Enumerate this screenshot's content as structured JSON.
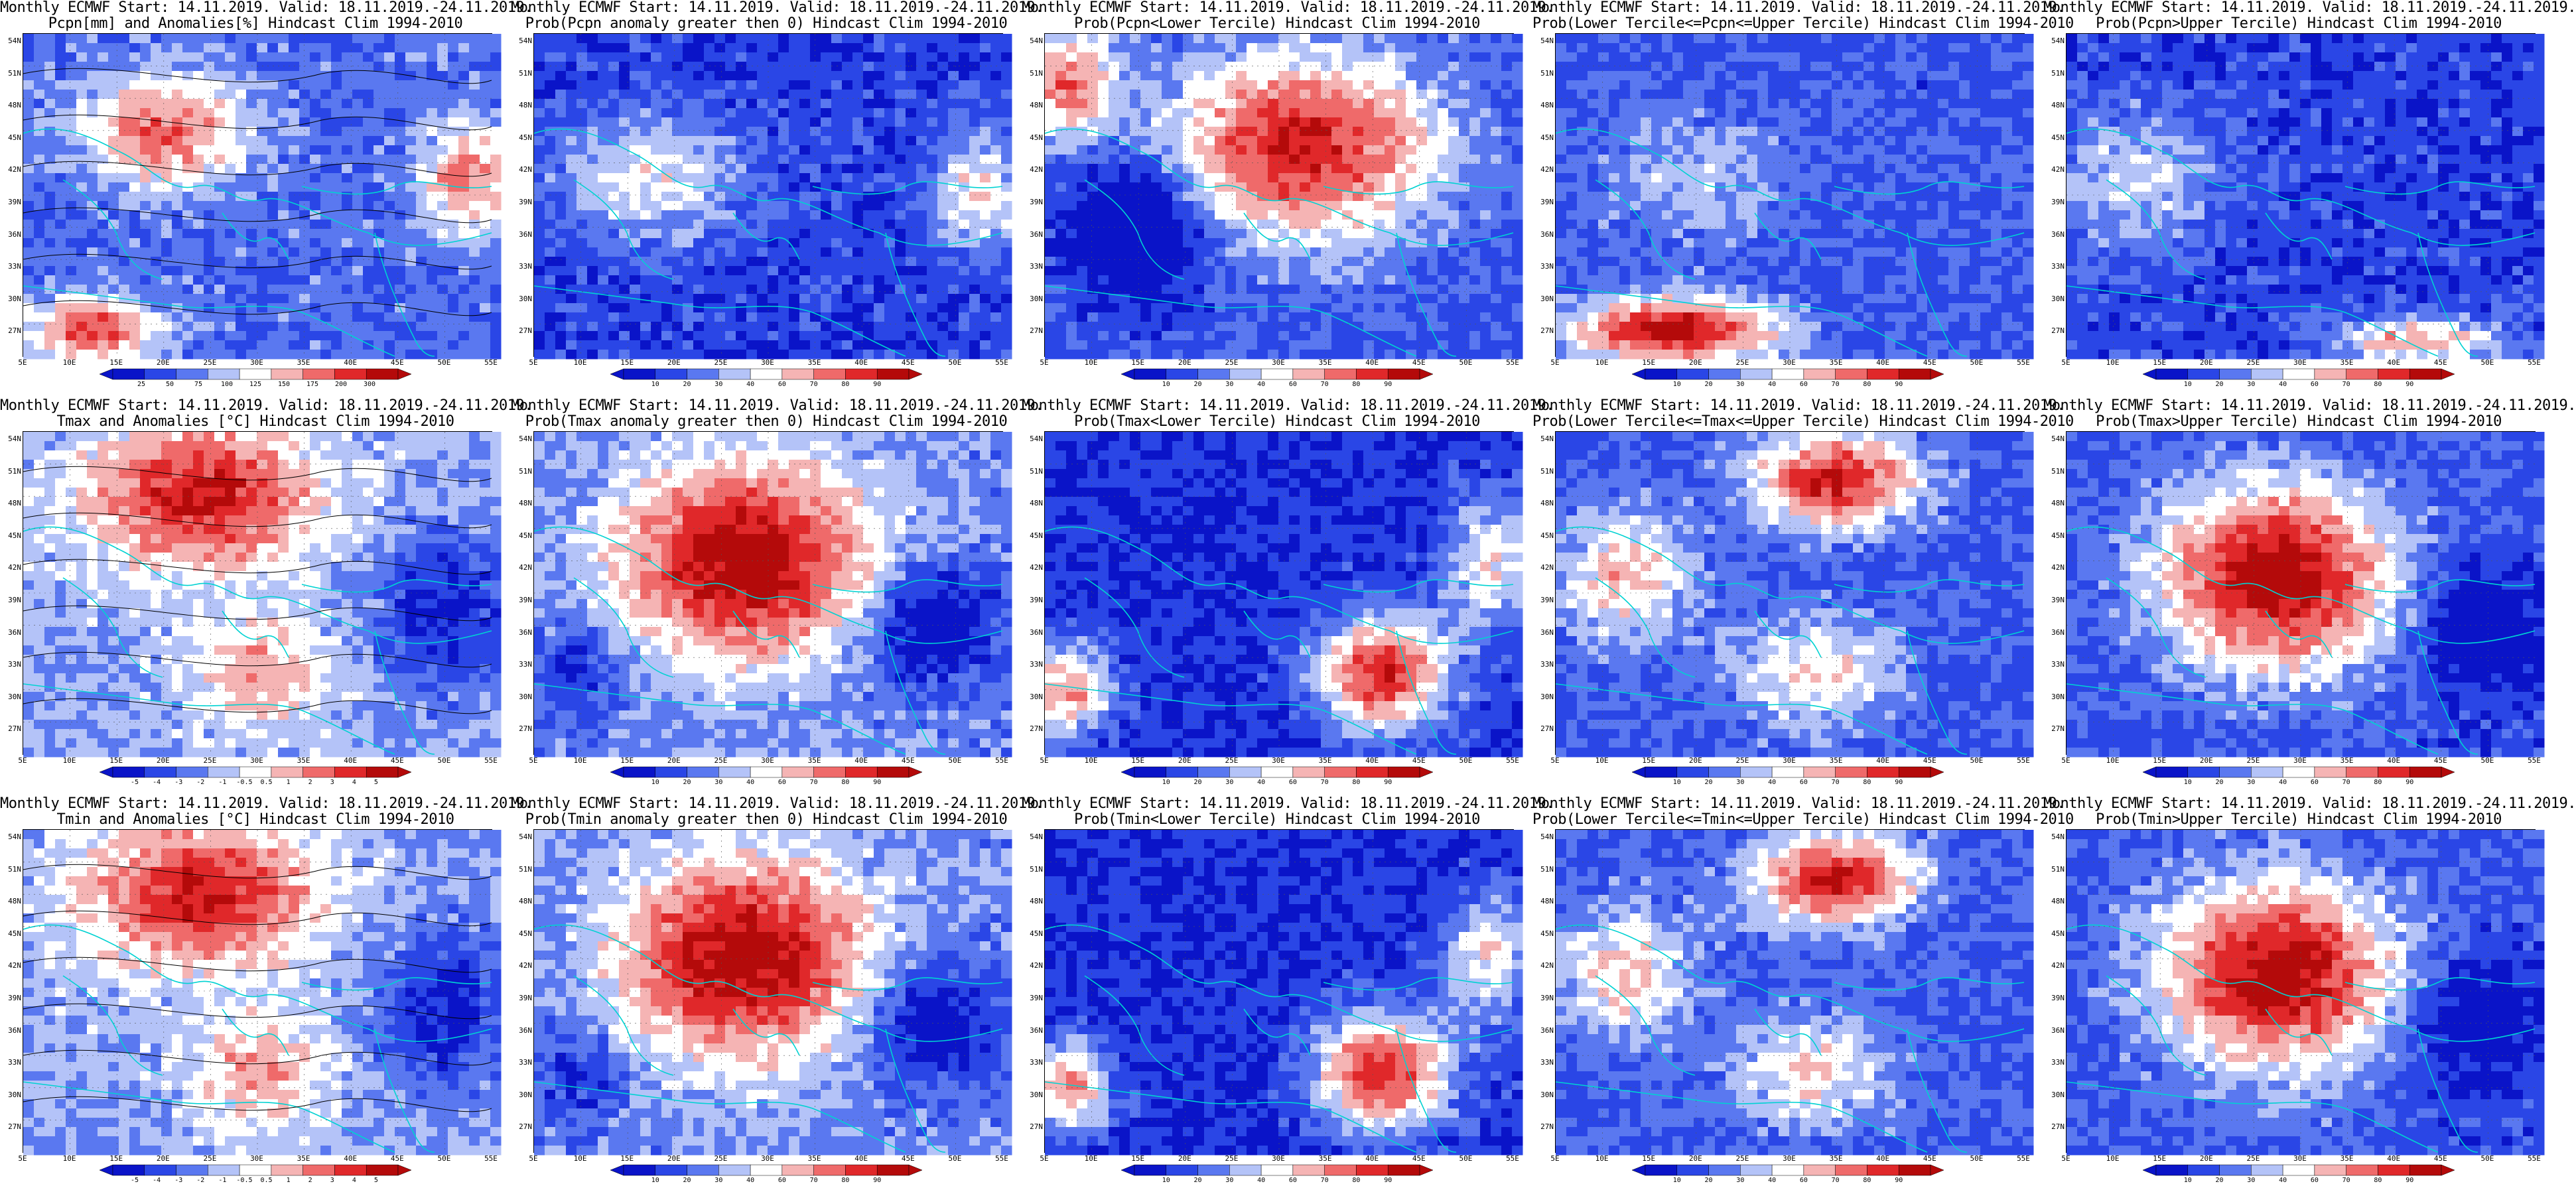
{
  "rows": [
    {
      "variable": "precipitation",
      "panels": [
        {
          "title1": "Monthly ECMWF Start: 14.11.2019. Valid: 18.11.2019.-24.11.2019.",
          "title2": "Pcpn[mm] and Anomalies[%] Hindcast Clim 1994-2010",
          "palette": "anom",
          "pattern": "pcpn_anom",
          "colorbar": [
            "25",
            "50",
            "75",
            "100",
            "125",
            "150",
            "175",
            "200",
            "300"
          ]
        },
        {
          "title1": "Monthly ECMWF Start: 14.11.2019. Valid: 18.11.2019.-24.11.2019.",
          "title2": "Prob(Pcpn anomaly greater then 0) Hindcast Clim 1994-2010",
          "palette": "prob",
          "pattern": "pcpn_pos",
          "colorbar": [
            "10",
            "20",
            "30",
            "40",
            "60",
            "70",
            "80",
            "90"
          ]
        },
        {
          "title1": "Monthly ECMWF Start: 14.11.2019. Valid: 18.11.2019.-24.11.2019.",
          "title2": "Prob(Pcpn<Lower Tercile) Hindcast Clim 1994-2010",
          "palette": "prob",
          "pattern": "pcpn_low",
          "colorbar": [
            "10",
            "20",
            "30",
            "40",
            "60",
            "70",
            "80",
            "90"
          ]
        },
        {
          "title1": "Monthly ECMWF Start: 14.11.2019. Valid: 18.11.2019.-24.11.2019.",
          "title2": "Prob(Lower Tercile<=Pcpn<=Upper Tercile) Hindcast Clim 1994-2010",
          "palette": "prob",
          "pattern": "pcpn_mid",
          "colorbar": [
            "10",
            "20",
            "30",
            "40",
            "60",
            "70",
            "80",
            "90"
          ]
        },
        {
          "title1": "Monthly ECMWF Start: 14.11.2019. Valid: 18.11.2019.-24.11.2019.",
          "title2": "Prob(Pcpn>Upper Tercile) Hindcast Clim 1994-2010",
          "palette": "prob",
          "pattern": "pcpn_up",
          "colorbar": [
            "10",
            "20",
            "30",
            "40",
            "60",
            "70",
            "80",
            "90"
          ]
        }
      ]
    },
    {
      "variable": "tmax",
      "panels": [
        {
          "title1": "Monthly ECMWF Start: 14.11.2019. Valid: 18.11.2019.-24.11.2019.",
          "title2": "Tmax and Anomalies [°C] Hindcast Clim 1994-2010",
          "palette": "anom",
          "pattern": "t_anom",
          "colorbar": [
            "-5",
            "-4",
            "-3",
            "-2",
            "-1",
            "-0.5",
            "0.5",
            "1",
            "2",
            "3",
            "4",
            "5"
          ]
        },
        {
          "title1": "Monthly ECMWF Start: 14.11.2019. Valid: 18.11.2019.-24.11.2019.",
          "title2": "Prob(Tmax anomaly greater then 0) Hindcast Clim 1994-2010",
          "palette": "prob",
          "pattern": "t_pos",
          "colorbar": [
            "10",
            "20",
            "30",
            "40",
            "60",
            "70",
            "80",
            "90"
          ]
        },
        {
          "title1": "Monthly ECMWF Start: 14.11.2019. Valid: 18.11.2019.-24.11.2019.",
          "title2": "Prob(Tmax<Lower Tercile) Hindcast Clim 1994-2010",
          "palette": "prob",
          "pattern": "t_low",
          "colorbar": [
            "10",
            "20",
            "30",
            "40",
            "60",
            "70",
            "80",
            "90"
          ]
        },
        {
          "title1": "Monthly ECMWF Start: 14.11.2019. Valid: 18.11.2019.-24.11.2019.",
          "title2": "Prob(Lower Tercile<=Tmax<=Upper Tercile) Hindcast Clim 1994-2010",
          "palette": "prob",
          "pattern": "t_mid",
          "colorbar": [
            "10",
            "20",
            "30",
            "40",
            "60",
            "70",
            "80",
            "90"
          ]
        },
        {
          "title1": "Monthly ECMWF Start: 14.11.2019. Valid: 18.11.2019.-24.11.2019.",
          "title2": "Prob(Tmax>Upper Tercile) Hindcast Clim 1994-2010",
          "palette": "prob",
          "pattern": "t_up",
          "colorbar": [
            "10",
            "20",
            "30",
            "40",
            "60",
            "70",
            "80",
            "90"
          ]
        }
      ]
    },
    {
      "variable": "tmin",
      "panels": [
        {
          "title1": "Monthly ECMWF Start: 14.11.2019. Valid: 18.11.2019.-24.11.2019.",
          "title2": "Tmin and Anomalies [°C] Hindcast Clim 1994-2010",
          "palette": "anom",
          "pattern": "t_anom",
          "colorbar": [
            "-5",
            "-4",
            "-3",
            "-2",
            "-1",
            "-0.5",
            "0.5",
            "1",
            "2",
            "3",
            "4",
            "5"
          ]
        },
        {
          "title1": "Monthly ECMWF Start: 14.11.2019. Valid: 18.11.2019.-24.11.2019.",
          "title2": "Prob(Tmin anomaly greater then 0) Hindcast Clim 1994-2010",
          "palette": "prob",
          "pattern": "t_pos",
          "colorbar": [
            "10",
            "20",
            "30",
            "40",
            "60",
            "70",
            "80",
            "90"
          ]
        },
        {
          "title1": "Monthly ECMWF Start: 14.11.2019. Valid: 18.11.2019.-24.11.2019.",
          "title2": "Prob(Tmin<Lower Tercile) Hindcast Clim 1994-2010",
          "palette": "prob",
          "pattern": "t_low",
          "colorbar": [
            "10",
            "20",
            "30",
            "40",
            "60",
            "70",
            "80",
            "90"
          ]
        },
        {
          "title1": "Monthly ECMWF Start: 14.11.2019. Valid: 18.11.2019.-24.11.2019.",
          "title2": "Prob(Lower Tercile<=Tmin<=Upper Tercile) Hindcast Clim 1994-2010",
          "palette": "prob",
          "pattern": "t_mid",
          "colorbar": [
            "10",
            "20",
            "30",
            "40",
            "60",
            "70",
            "80",
            "90"
          ]
        },
        {
          "title1": "Monthly ECMWF Start: 14.11.2019. Valid: 18.11.2019.-24.11.2019.",
          "title2": "Prob(Tmin>Upper Tercile) Hindcast Clim 1994-2010",
          "palette": "prob",
          "pattern": "t_up",
          "colorbar": [
            "10",
            "20",
            "30",
            "40",
            "60",
            "70",
            "80",
            "90"
          ]
        }
      ]
    }
  ],
  "lat_labels": [
    "54N",
    "51N",
    "48N",
    "45N",
    "42N",
    "39N",
    "36N",
    "33N",
    "30N",
    "27N"
  ],
  "lon_labels": [
    "5E",
    "10E",
    "15E",
    "20E",
    "25E",
    "30E",
    "35E",
    "40E",
    "45E",
    "50E",
    "55E"
  ],
  "colors": {
    "deep_blue": "#0a14c8",
    "blue": "#2a46e6",
    "mid_blue": "#5a78f0",
    "light_blue": "#b4c3f8",
    "white": "#ffffff",
    "light_red": "#f5b4b4",
    "mid_red": "#ef6a6a",
    "red": "#e0282a",
    "deep_red": "#b40a0a",
    "coast": "#00d2d2",
    "contour": "#000000"
  }
}
